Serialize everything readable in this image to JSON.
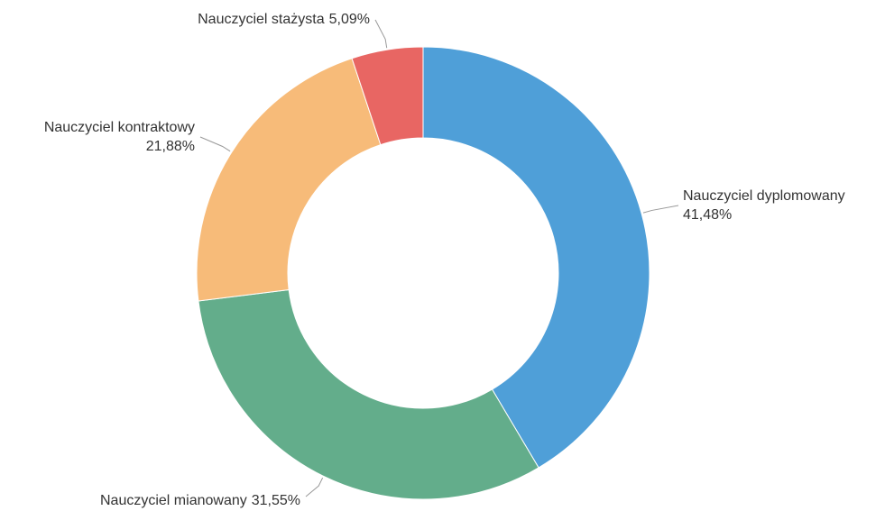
{
  "chart_data": {
    "type": "donut",
    "categories": [
      "Nauczyciel dyplomowany",
      "Nauczyciel mianowany",
      "Nauczyciel kontraktowy",
      "Nauczyciel stażysta"
    ],
    "values": [
      41.48,
      31.55,
      21.88,
      5.09
    ],
    "value_labels": [
      "41,48%",
      "31,55%",
      "21,88%",
      "5,09%"
    ],
    "colors": [
      "#4f9fd8",
      "#63ad8b",
      "#f7bb79",
      "#e86663"
    ]
  }
}
